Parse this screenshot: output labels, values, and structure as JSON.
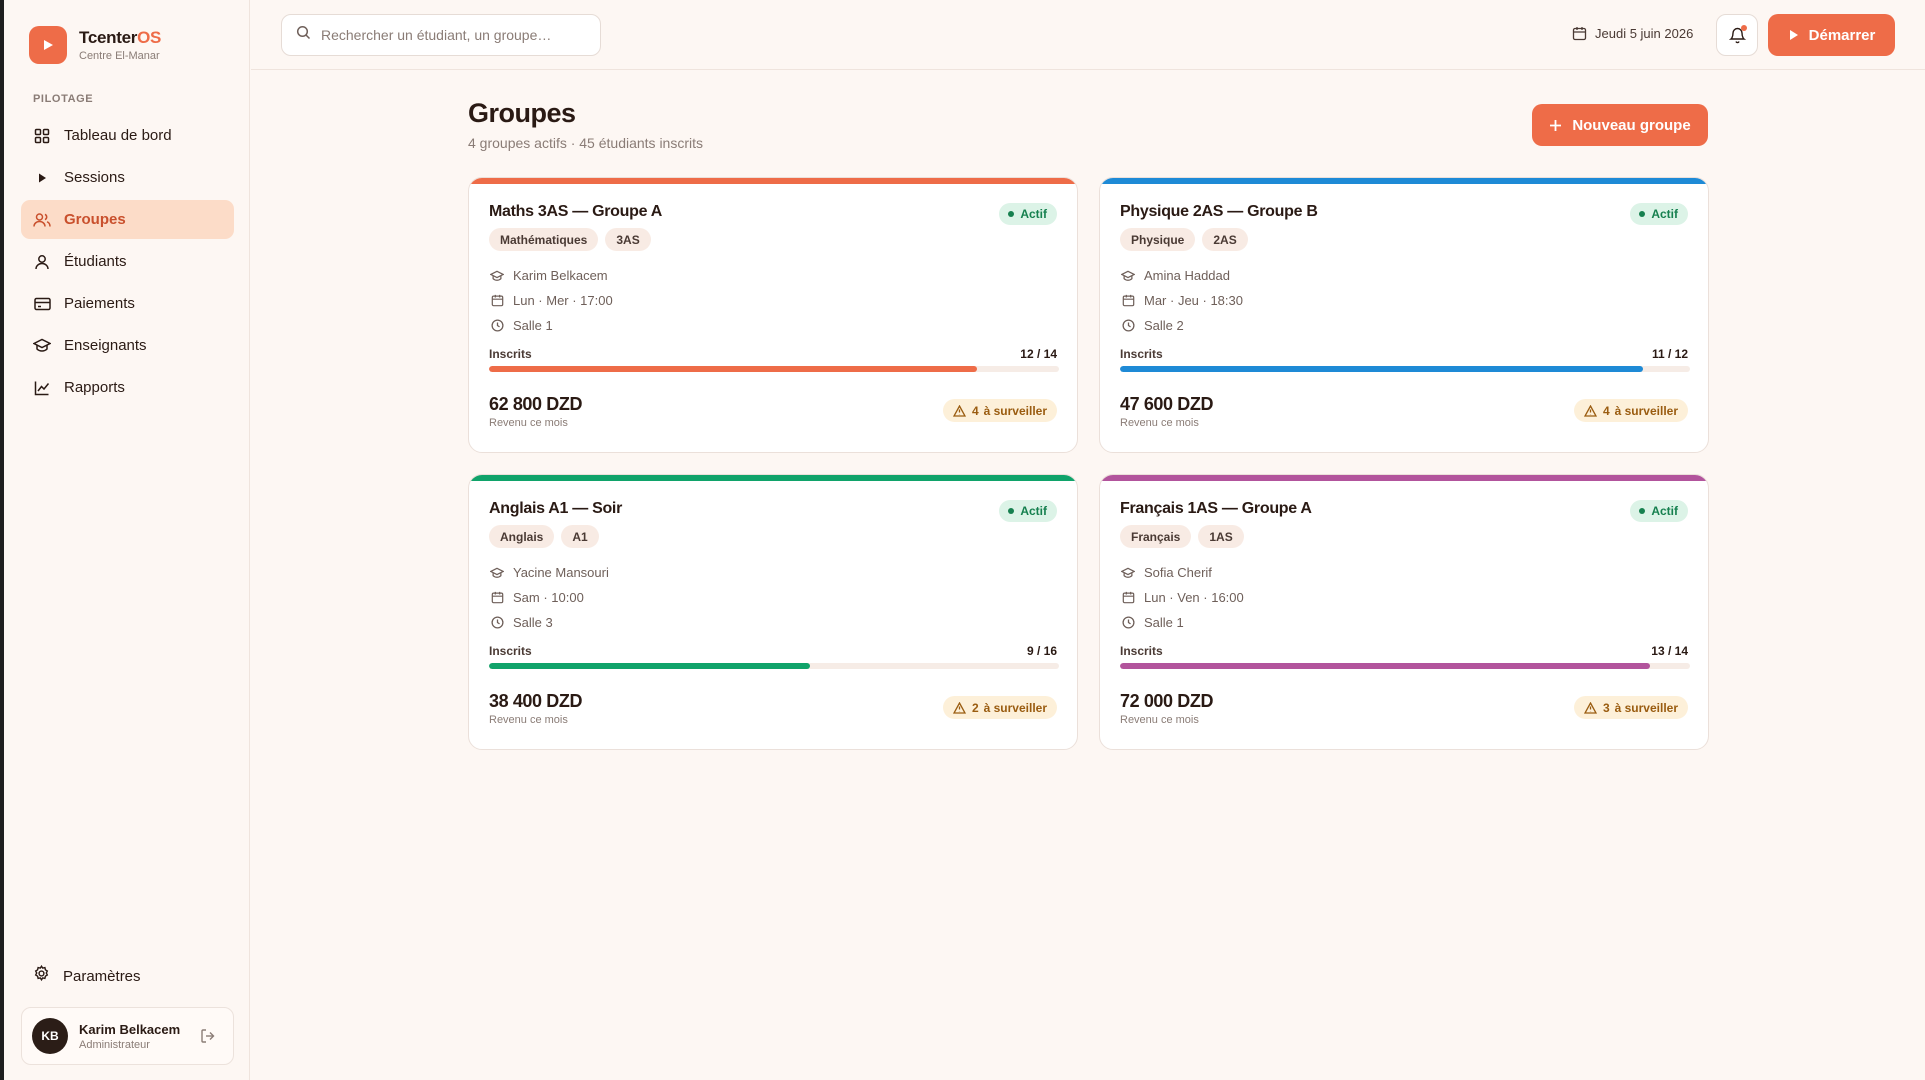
{
  "brand": {
    "name": "Tcenter",
    "name_accent": "OS",
    "subtitle": "Centre El-Manar"
  },
  "sidebar": {
    "section_label": "PILOTAGE",
    "items": [
      {
        "label": "Tableau de bord",
        "icon": "grid-icon"
      },
      {
        "label": "Sessions",
        "icon": "play-icon"
      },
      {
        "label": "Groupes",
        "icon": "users-icon",
        "active": true
      },
      {
        "label": "Étudiants",
        "icon": "user-icon"
      },
      {
        "label": "Paiements",
        "icon": "card-icon"
      },
      {
        "label": "Enseignants",
        "icon": "graduation-cap-icon"
      },
      {
        "label": "Rapports",
        "icon": "chart-icon"
      }
    ],
    "settings_label": "Paramètres",
    "user": {
      "initials": "KB",
      "name": "Karim Belkacem",
      "role": "Administrateur"
    }
  },
  "topbar": {
    "search_placeholder": "Rechercher un étudiant, un groupe…",
    "date": "Jeudi 5 juin 2026",
    "start_label": "Démarrer"
  },
  "page": {
    "title": "Groupes",
    "subtitle": "4 groupes actifs · 45 étudiants inscrits",
    "new_button": "Nouveau groupe"
  },
  "colors": {
    "accent": "#ee6c48",
    "blue": "#1e8ad6",
    "green": "#10a36a",
    "purple": "#b2549c"
  },
  "groups": [
    {
      "title": "Maths 3AS — Groupe A",
      "status": "Actif",
      "tags": [
        "Mathématiques",
        "3AS"
      ],
      "teacher": "Karim Belkacem",
      "schedule": "Lun · Mer · 17:00",
      "room": "Salle 1",
      "enrolled_label": "Inscrits",
      "enrolled": "12 / 14",
      "fill": 0.857,
      "revenue": "62 800 DZD",
      "revenue_label": "Revenu ce mois",
      "watch_count": "4",
      "watch_label": "à surveiller",
      "color": "#ee6c48"
    },
    {
      "title": "Physique 2AS — Groupe B",
      "status": "Actif",
      "tags": [
        "Physique",
        "2AS"
      ],
      "teacher": "Amina Haddad",
      "schedule": "Mar · Jeu · 18:30",
      "room": "Salle 2",
      "enrolled_label": "Inscrits",
      "enrolled": "11 / 12",
      "fill": 0.917,
      "revenue": "47 600 DZD",
      "revenue_label": "Revenu ce mois",
      "watch_count": "4",
      "watch_label": "à surveiller",
      "color": "#1e8ad6"
    },
    {
      "title": "Anglais A1 — Soir",
      "status": "Actif",
      "tags": [
        "Anglais",
        "A1"
      ],
      "teacher": "Yacine Mansouri",
      "schedule": "Sam · 10:00",
      "room": "Salle 3",
      "enrolled_label": "Inscrits",
      "enrolled": "9 / 16",
      "fill": 0.5625,
      "revenue": "38 400 DZD",
      "revenue_label": "Revenu ce mois",
      "watch_count": "2",
      "watch_label": "à surveiller",
      "color": "#10a36a"
    },
    {
      "title": "Français 1AS — Groupe A",
      "status": "Actif",
      "tags": [
        "Français",
        "1AS"
      ],
      "teacher": "Sofia Cherif",
      "schedule": "Lun · Ven · 16:00",
      "room": "Salle 1",
      "enrolled_label": "Inscrits",
      "enrolled": "13 / 14",
      "fill": 0.929,
      "revenue": "72 000 DZD",
      "revenue_label": "Revenu ce mois",
      "watch_count": "3",
      "watch_label": "à surveiller",
      "color": "#b2549c"
    }
  ]
}
